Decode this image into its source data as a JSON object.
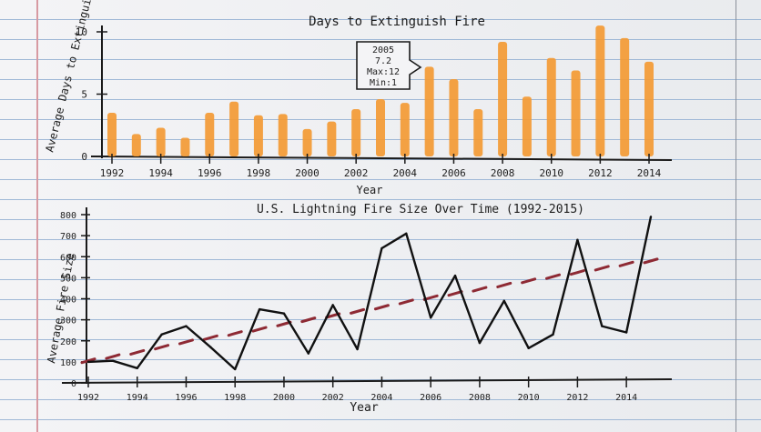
{
  "chart_data": [
    {
      "type": "bar",
      "title": "Days to Extinguish Fire",
      "xlabel": "Year",
      "ylabel": "Average Days to Extinguish",
      "ylim": [
        0,
        10
      ],
      "y_ticks": [
        "0",
        "5",
        "10"
      ],
      "x_tick_labels": [
        "1992",
        "1994",
        "1996",
        "1998",
        "2000",
        "2002",
        "2004",
        "2006",
        "2008",
        "2010",
        "2012",
        "2014"
      ],
      "categories": [
        "1992",
        "1993",
        "1994",
        "1995",
        "1996",
        "1997",
        "1998",
        "1999",
        "2000",
        "2001",
        "2002",
        "2003",
        "2004",
        "2005",
        "2006",
        "2007",
        "2008",
        "2009",
        "2010",
        "2011",
        "2012",
        "2013",
        "2014"
      ],
      "values": [
        3.5,
        1.8,
        2.3,
        1.5,
        3.5,
        4.4,
        3.3,
        3.4,
        2.2,
        2.8,
        3.8,
        4.6,
        4.3,
        7.2,
        6.2,
        3.8,
        9.2,
        4.8,
        7.9,
        6.9,
        10.5,
        9.5,
        7.6
      ],
      "bar_color": "#f39a34",
      "annotation": {
        "year": "2005",
        "lines": [
          "2005",
          "7.2",
          "Max:12",
          "Min:1"
        ]
      }
    },
    {
      "type": "line",
      "title": "U.S. Lightning Fire Size Over Time (1992-2015)",
      "xlabel": "Year",
      "ylabel": "Average Fire Size",
      "ylim": [
        0,
        800
      ],
      "y_ticks": [
        "0",
        "100",
        "200",
        "300",
        "400",
        "500",
        "600",
        "700",
        "800"
      ],
      "x_tick_labels": [
        "1992",
        "1994",
        "1996",
        "1998",
        "2000",
        "2002",
        "2004",
        "2006",
        "2008",
        "2010",
        "2012",
        "2014"
      ],
      "x": [
        1992,
        1993,
        1994,
        1995,
        1996,
        1997,
        1998,
        1999,
        2000,
        2001,
        2002,
        2003,
        2004,
        2005,
        2006,
        2007,
        2008,
        2009,
        2010,
        2011,
        2012,
        2013,
        2014,
        2015
      ],
      "series": [
        {
          "values": [
            100,
            105,
            70,
            230,
            270,
            170,
            65,
            350,
            330,
            140,
            370,
            160,
            640,
            710,
            310,
            510,
            190,
            390,
            165,
            230,
            680,
            270,
            240,
            790
          ],
          "color": "#111111"
        }
      ],
      "trend": {
        "style": "dashed",
        "color": "#8e2a34",
        "values": [
          105,
          125,
          145,
          170,
          195,
          215,
          235,
          255,
          280,
          300,
          320,
          340,
          360,
          385,
          405,
          425,
          445,
          465,
          485,
          505,
          525,
          545,
          565,
          580
        ]
      }
    }
  ]
}
